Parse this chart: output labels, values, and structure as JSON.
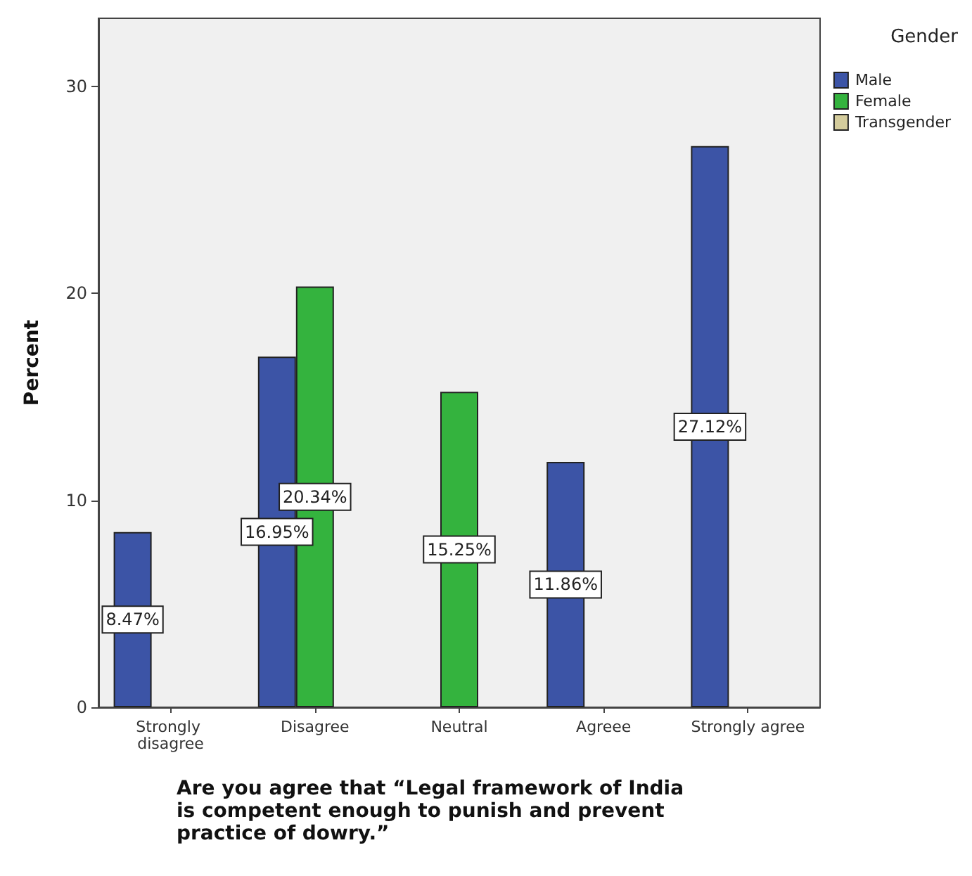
{
  "chart_data": {
    "type": "bar",
    "xlabel": "Are you agree that “Legal framework of India is competent enough to punish and prevent practice of dowry.”",
    "ylabel": "Percent",
    "legend_title": "Gender",
    "categories": [
      "Strongly disagree",
      "Disagree",
      "Neutral",
      "Agreee",
      "Strongly agree"
    ],
    "series": [
      {
        "name": "Male",
        "color": "#3c54a6",
        "values": [
          8.47,
          16.95,
          null,
          11.86,
          27.12
        ],
        "value_labels": [
          "8.47%",
          "16.95%",
          null,
          "11.86%",
          "27.12%"
        ]
      },
      {
        "name": "Female",
        "color": "#34b33e",
        "values": [
          null,
          20.34,
          15.25,
          null,
          null
        ],
        "value_labels": [
          null,
          "20.34%",
          "15.25%",
          null,
          null
        ]
      },
      {
        "name": "Transgender",
        "color": "#d4cc9c",
        "values": [
          null,
          null,
          null,
          null,
          null
        ]
      }
    ],
    "ylim": [
      0,
      33.3
    ],
    "yticks": [
      0,
      10,
      20,
      30
    ],
    "grid": false,
    "legend": "top right"
  }
}
